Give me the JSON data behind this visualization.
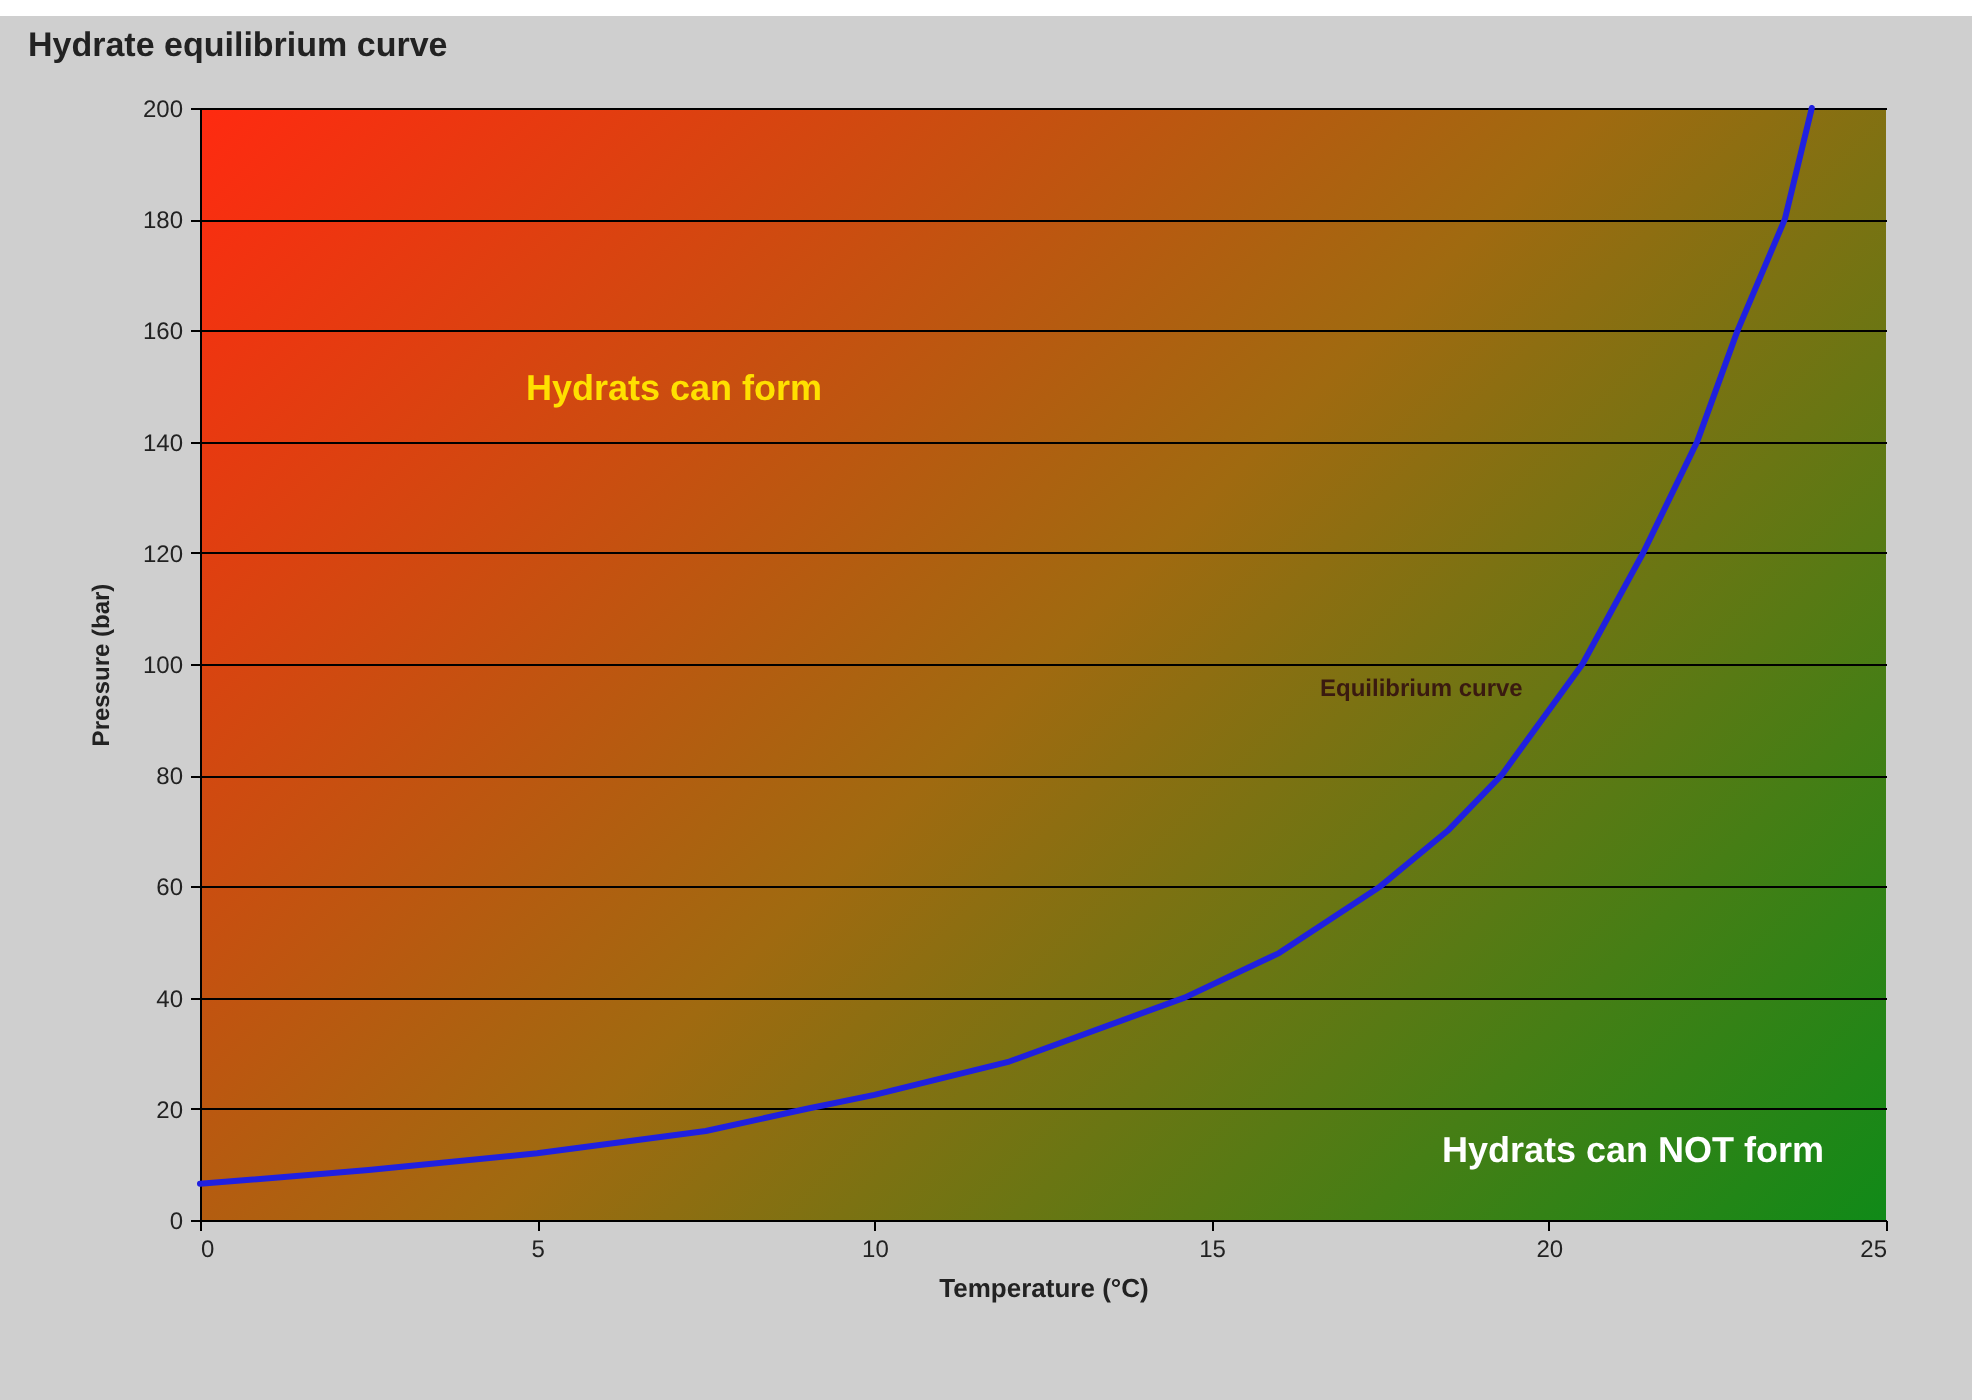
{
  "chart_data": {
    "type": "line",
    "title": "Hydrate equilibrium curve",
    "xlabel": "Temperature (°C)",
    "ylabel": "Pressure (bar)",
    "x": [
      0,
      2.5,
      5,
      7.5,
      9,
      10,
      12,
      14.6,
      16,
      17.5,
      18.5,
      19.3,
      20.5,
      21.4,
      22.2,
      22.8,
      23.5,
      23.9
    ],
    "series": [
      {
        "name": "Equilibrium curve",
        "color": "#2020e0",
        "values": [
          6.5,
          9,
          12,
          16,
          20,
          22.5,
          28.5,
          40,
          48,
          60,
          70,
          80,
          100,
          120,
          140,
          160,
          180,
          200
        ]
      }
    ],
    "xlim": [
      0,
      25
    ],
    "xticks": [
      0,
      5,
      10,
      15,
      20,
      25
    ],
    "ylim": [
      0,
      200
    ],
    "yticks": [
      0,
      20,
      40,
      60,
      80,
      100,
      120,
      140,
      160,
      180,
      200
    ],
    "grid": "y",
    "line_style": "solid",
    "annotations": [
      "Hydrats can form",
      "Hydrats can NOT form"
    ]
  }
}
